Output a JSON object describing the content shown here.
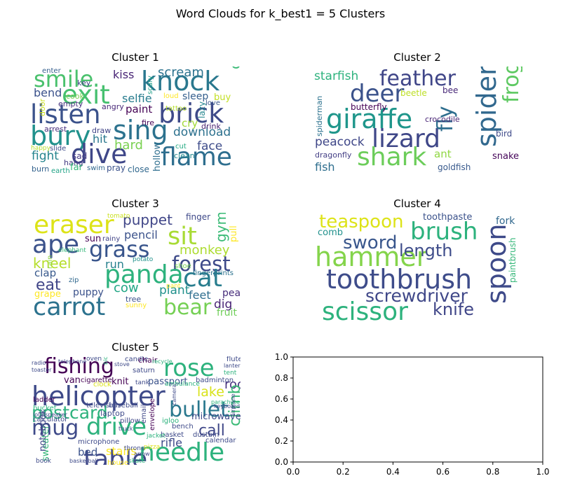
{
  "figure": {
    "suptitle": "Word Clouds for k_best1 = 5 Clusters"
  },
  "chart_data": [
    {
      "type": "wordcloud",
      "title": "Cluster 1",
      "words": [
        "smile",
        "knock",
        "exit",
        "listen",
        "brick",
        "sing",
        "bury",
        "dive",
        "flame",
        "scream",
        "kiss",
        "selfie",
        "catch",
        "bend",
        "paint",
        "sleep",
        "buy",
        "download",
        "cry",
        "face",
        "hard",
        "fight",
        "hit",
        "draw",
        "arrest",
        "slide",
        "happy",
        "sad",
        "hang",
        "swim",
        "pray",
        "close",
        "hollow",
        "cut",
        "clean",
        "drink",
        "lazy",
        "love",
        "tattoo",
        "fire",
        "angry",
        "empty",
        "cook",
        "key",
        "enter",
        "door",
        "scary",
        "burn",
        "earth",
        "far",
        "loud"
      ]
    },
    {
      "type": "wordcloud",
      "title": "Cluster 2",
      "words": [
        "starfish",
        "feather",
        "deer",
        "giraffe",
        "spider",
        "frog",
        "lizard",
        "shark",
        "fly",
        "spiderman",
        "beetle",
        "bee",
        "butterfly",
        "crocodile",
        "peacock",
        "bird",
        "dragonfly",
        "ant",
        "snake",
        "fish",
        "goldfish"
      ]
    },
    {
      "type": "wordcloud",
      "title": "Cluster 3",
      "words": [
        "eraser",
        "ape",
        "grass",
        "sit",
        "gym",
        "puppet",
        "finger",
        "pencil",
        "pull",
        "monkey",
        "forest",
        "kneel",
        "run",
        "panda",
        "cat",
        "eat",
        "cow",
        "clap",
        "sun",
        "rainy",
        "carrot",
        "bear",
        "plant",
        "feet",
        "dig",
        "pear",
        "fruit",
        "puppy",
        "tree",
        "sunny",
        "grape",
        "zip",
        "rain",
        "elephant",
        "potato",
        "tomato",
        "shoe",
        "pant",
        "fingerprints"
      ]
    },
    {
      "type": "wordcloud",
      "title": "Cluster 4",
      "words": [
        "teaspoon",
        "brush",
        "toothpaste",
        "fork",
        "comb",
        "sword",
        "hammer",
        "length",
        "spoon",
        "paintbrush",
        "toothbrush",
        "screwdriver",
        "scissor",
        "knife"
      ]
    },
    {
      "type": "wordcloud",
      "title": "Cluster 5",
      "words": [
        "fishing",
        "rose",
        "helicopter",
        "bullet",
        "table",
        "needle",
        "mug",
        "drive",
        "postcard",
        "lake",
        "roof",
        "climb",
        "call",
        "stairs",
        "rifle",
        "bed",
        "sweater",
        "notebook",
        "passport",
        "microwave",
        "van",
        "ladder",
        "bucket",
        "cigarette",
        "clock",
        "knit",
        "tank",
        "ambulance",
        "badminton",
        "television",
        "baseball",
        "laptop",
        "envelope",
        "pillow",
        "email",
        "igloo",
        "bench",
        "basket",
        "calculator",
        "microphone",
        "jacket",
        "pizza",
        "dustbin",
        "calendar",
        "throne",
        "arrow",
        "skate",
        "house",
        "book",
        "basketball",
        "candle",
        "chair",
        "oven",
        "flute",
        "lantern",
        "tent",
        "saturn",
        "radio",
        "toaster",
        "telephone",
        "recycle",
        "keyboard",
        "loudspeaker",
        "truck",
        "parachute",
        "airplane",
        "stove",
        "camera",
        "bicycle"
      ]
    },
    {
      "type": "empty",
      "title": "",
      "xlim": [
        0.0,
        1.0
      ],
      "ylim": [
        0.0,
        1.0
      ],
      "xticks": [
        "0.0",
        "0.2",
        "0.4",
        "0.6",
        "0.8",
        "1.0"
      ],
      "yticks": [
        "0.0",
        "0.2",
        "0.4",
        "0.6",
        "0.8",
        "1.0"
      ]
    }
  ]
}
